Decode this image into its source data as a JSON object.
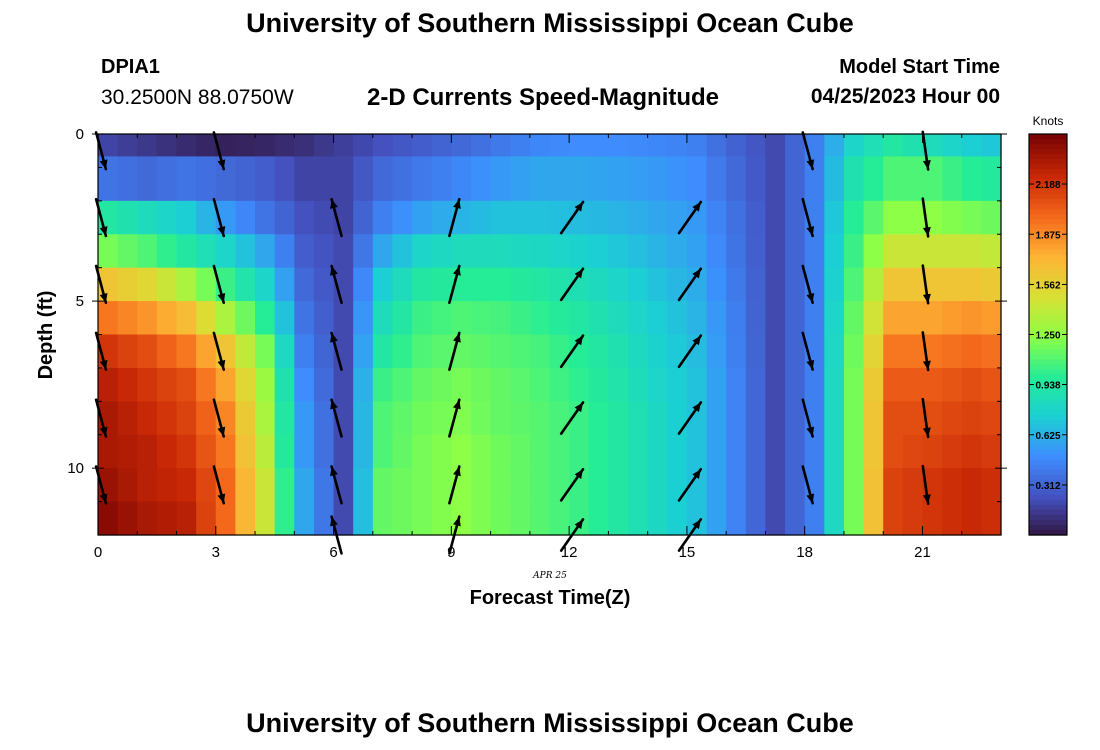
{
  "header": {
    "title": "University of Southern Mississippi Ocean Cube",
    "station_id": "DPIA1",
    "station_coords": "30.2500N  88.0750W",
    "chart_title": "2-D Currents Speed-Magnitude",
    "model_start_label": "Model Start Time",
    "model_start_value": "04/25/2023 Hour 00"
  },
  "footer": {
    "title": "University of Southern Mississippi Ocean Cube"
  },
  "chart_data": {
    "type": "heatmap",
    "title": "2-D Currents Speed-Magnitude",
    "xlabel": "Forecast Time(Z)",
    "ylabel": "Depth (ft)",
    "date_label": "APR 25",
    "xlim": [
      0,
      23
    ],
    "ylim": [
      0,
      12
    ],
    "x_ticks": [
      0,
      3,
      6,
      9,
      12,
      15,
      18,
      21
    ],
    "y_ticks": [
      0,
      5,
      10
    ],
    "y_inverted": true,
    "colorbar": {
      "unit": "Knots",
      "range": [
        0,
        2.5
      ],
      "ticks": [
        "2.188",
        "1.875",
        "1.562",
        "1.250",
        "0.938",
        "0.625",
        "0.312"
      ],
      "colormap": "turbo"
    },
    "hours": [
      0,
      0.5,
      1,
      1.5,
      2,
      2.5,
      3,
      3.5,
      4,
      4.5,
      5,
      5.5,
      6,
      6.5,
      7,
      7.5,
      8,
      8.5,
      9,
      9.5,
      10,
      10.5,
      11,
      11.5,
      12,
      12.5,
      13,
      13.5,
      14,
      14.5,
      15,
      15.5,
      16,
      16.5,
      17,
      17.5,
      18,
      18.5,
      19,
      19.5,
      20,
      20.5,
      21,
      21.5,
      22,
      22.5
    ],
    "depth_bins": [
      [
        0,
        0.67
      ],
      [
        0.67,
        2
      ],
      [
        2,
        3
      ],
      [
        3,
        4
      ],
      [
        4,
        5
      ],
      [
        5,
        6
      ],
      [
        6,
        7
      ],
      [
        7,
        8
      ],
      [
        8,
        9
      ],
      [
        9,
        10
      ],
      [
        10,
        11
      ],
      [
        11,
        12
      ]
    ],
    "profiles": [
      {
        "hour": 0,
        "speed": [
          0.2,
          0.4,
          0.95,
          1.2,
          1.65,
          1.95,
          2.2,
          2.3,
          2.35,
          2.35,
          2.4,
          2.45
        ]
      },
      {
        "hour": 1,
        "speed": [
          0.15,
          0.35,
          0.85,
          1.1,
          1.55,
          1.85,
          2.1,
          2.2,
          2.25,
          2.3,
          2.3,
          2.35
        ]
      },
      {
        "hour": 2,
        "speed": [
          0.1,
          0.4,
          0.75,
          0.95,
          1.35,
          1.7,
          1.95,
          2.1,
          2.15,
          2.2,
          2.25,
          2.3
        ]
      },
      {
        "hour": 3,
        "speed": [
          0.06,
          0.35,
          0.55,
          0.8,
          1.05,
          1.35,
          1.65,
          1.8,
          1.9,
          1.95,
          2.0,
          2.0
        ]
      },
      {
        "hour": 4,
        "speed": [
          0.08,
          0.3,
          0.4,
          0.6,
          0.8,
          1.0,
          1.2,
          1.3,
          1.35,
          1.4,
          1.45,
          1.45
        ]
      },
      {
        "hour": 5,
        "speed": [
          0.12,
          0.2,
          0.25,
          0.3,
          0.35,
          0.4,
          0.45,
          0.5,
          0.55,
          0.55,
          0.6,
          0.6
        ]
      },
      {
        "hour": 6,
        "speed": [
          0.18,
          0.2,
          0.2,
          0.22,
          0.22,
          0.22,
          0.22,
          0.22,
          0.22,
          0.22,
          0.22,
          0.22
        ]
      },
      {
        "hour": 7,
        "speed": [
          0.25,
          0.35,
          0.45,
          0.6,
          0.75,
          0.85,
          0.95,
          1.05,
          1.1,
          1.1,
          1.15,
          1.15
        ]
      },
      {
        "hour": 8,
        "speed": [
          0.3,
          0.42,
          0.58,
          0.8,
          0.95,
          1.05,
          1.1,
          1.15,
          1.18,
          1.2,
          1.2,
          1.2
        ]
      },
      {
        "hour": 9,
        "speed": [
          0.35,
          0.48,
          0.65,
          0.85,
          1.0,
          1.1,
          1.15,
          1.2,
          1.22,
          1.25,
          1.25,
          1.25
        ]
      },
      {
        "hour": 10,
        "speed": [
          0.42,
          0.55,
          0.7,
          0.85,
          1.0,
          1.08,
          1.12,
          1.15,
          1.15,
          1.18,
          1.18,
          1.18
        ]
      },
      {
        "hour": 11,
        "speed": [
          0.48,
          0.6,
          0.7,
          0.82,
          0.95,
          1.02,
          1.08,
          1.1,
          1.12,
          1.12,
          1.12,
          1.12
        ]
      },
      {
        "hour": 12,
        "speed": [
          0.5,
          0.6,
          0.68,
          0.78,
          0.88,
          0.95,
          1.0,
          1.02,
          1.05,
          1.05,
          1.05,
          1.05
        ]
      },
      {
        "hour": 13,
        "speed": [
          0.5,
          0.58,
          0.65,
          0.72,
          0.8,
          0.85,
          0.9,
          0.92,
          0.95,
          0.95,
          0.95,
          0.95
        ]
      },
      {
        "hour": 14,
        "speed": [
          0.48,
          0.55,
          0.6,
          0.65,
          0.7,
          0.75,
          0.78,
          0.8,
          0.82,
          0.82,
          0.82,
          0.82
        ]
      },
      {
        "hour": 15,
        "speed": [
          0.45,
          0.5,
          0.55,
          0.58,
          0.62,
          0.65,
          0.68,
          0.7,
          0.7,
          0.7,
          0.7,
          0.7
        ]
      },
      {
        "hour": 16,
        "speed": [
          0.32,
          0.35,
          0.38,
          0.4,
          0.42,
          0.44,
          0.45,
          0.46,
          0.46,
          0.46,
          0.46,
          0.46
        ]
      },
      {
        "hour": 17,
        "speed": [
          0.22,
          0.22,
          0.22,
          0.22,
          0.22,
          0.22,
          0.22,
          0.22,
          0.22,
          0.22,
          0.22,
          0.22
        ]
      },
      {
        "hour": 18,
        "speed": [
          0.45,
          0.45,
          0.45,
          0.45,
          0.45,
          0.45,
          0.45,
          0.45,
          0.45,
          0.45,
          0.45,
          0.45
        ]
      },
      {
        "hour": 19,
        "speed": [
          0.8,
          0.9,
          1.0,
          1.05,
          1.1,
          1.15,
          1.18,
          1.2,
          1.2,
          1.2,
          1.2,
          1.2
        ]
      },
      {
        "hour": 20,
        "speed": [
          0.95,
          1.1,
          1.25,
          1.45,
          1.65,
          1.8,
          1.95,
          2.05,
          2.1,
          2.1,
          2.15,
          2.15
        ]
      },
      {
        "hour": 21,
        "speed": [
          0.85,
          1.1,
          1.25,
          1.45,
          1.65,
          1.8,
          1.95,
          2.05,
          2.1,
          2.15,
          2.2,
          2.2
        ]
      },
      {
        "hour": 22,
        "speed": [
          0.75,
          1.0,
          1.2,
          1.45,
          1.65,
          1.85,
          2.0,
          2.1,
          2.15,
          2.2,
          2.25,
          2.25
        ]
      },
      {
        "hour": 23,
        "speed": [
          0.7,
          0.95,
          1.15,
          1.4,
          1.6,
          1.8,
          1.95,
          2.05,
          2.1,
          2.15,
          2.2,
          2.2
        ]
      }
    ],
    "vectors": {
      "depths": [
        0.5,
        2.5,
        4.5,
        6.5,
        8.5,
        10.5,
        12
      ],
      "columns": [
        {
          "hour": 0,
          "direction_deg": 165,
          "depths": [
            0.5,
            2.5,
            4.5,
            6.5,
            8.5,
            10.5
          ]
        },
        {
          "hour": 3,
          "direction_deg": 165,
          "depths": [
            0.5,
            2.5,
            4.5,
            6.5,
            8.5,
            10.5
          ]
        },
        {
          "hour": 6,
          "direction_deg": 345,
          "depths": [
            2.5,
            4.5,
            6.5,
            8.5,
            10.5,
            12
          ]
        },
        {
          "hour": 9,
          "direction_deg": 15,
          "depths": [
            2.5,
            4.5,
            6.5,
            8.5,
            10.5,
            12
          ]
        },
        {
          "hour": 12,
          "direction_deg": 35,
          "depths": [
            2.5,
            4.5,
            6.5,
            8.5,
            10.5,
            12
          ]
        },
        {
          "hour": 15,
          "direction_deg": 35,
          "depths": [
            2.5,
            4.5,
            6.5,
            8.5,
            10.5,
            12
          ]
        },
        {
          "hour": 18,
          "direction_deg": 165,
          "depths": [
            0.5,
            2.5,
            4.5,
            6.5,
            8.5,
            10.5
          ]
        },
        {
          "hour": 21,
          "direction_deg": 172,
          "depths": [
            0.5,
            2.5,
            4.5,
            6.5,
            8.5,
            10.5
          ]
        }
      ]
    }
  }
}
